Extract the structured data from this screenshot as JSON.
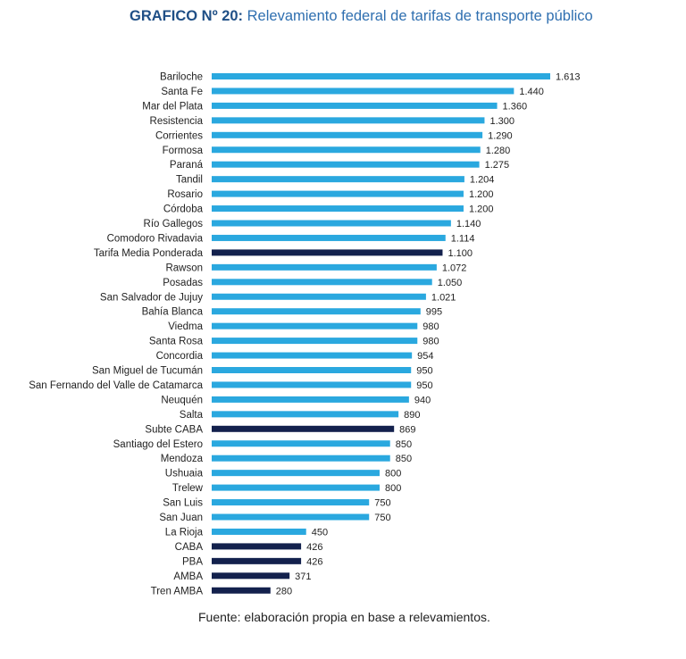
{
  "title": {
    "prefix": "GRAFICO Nº 20:",
    "text": "Relevamiento federal de tarifas de transporte público"
  },
  "source": "Fuente: elaboración propia en base a relevamientos.",
  "colors": {
    "bar": "#2aa8df",
    "highlight": "#13214d",
    "label": "#222222",
    "title": "#2f6fb0"
  },
  "chart_data": {
    "type": "bar",
    "orientation": "horizontal",
    "title": "Relevamiento federal de tarifas de transporte público",
    "xlabel": "",
    "ylabel": "",
    "grid": false,
    "xlim": [
      0,
      1613
    ],
    "categories": [
      "Bariloche",
      "Santa Fe",
      "Mar del Plata",
      "Resistencia",
      "Corrientes",
      "Formosa",
      "Paraná",
      "Tandil",
      "Rosario",
      "Córdoba",
      "Río Gallegos",
      "Comodoro Rivadavia",
      "Tarifa Media Ponderada",
      "Rawson",
      "Posadas",
      "San Salvador de Jujuy",
      "Bahía Blanca",
      "Viedma",
      "Santa Rosa",
      "Concordia",
      "San Miguel de Tucumán",
      "San Fernando del Valle de Catamarca",
      "Neuquén",
      "Salta",
      "Subte CABA",
      "Santiago del Estero",
      "Mendoza",
      "Ushuaia",
      "Trelew",
      "San Luis",
      "San Juan",
      "La Rioja",
      "CABA",
      "PBA",
      "AMBA",
      "Tren AMBA"
    ],
    "values": [
      1613,
      1440,
      1360,
      1300,
      1290,
      1280,
      1275,
      1204,
      1200,
      1200,
      1140,
      1114,
      1100,
      1072,
      1050,
      1021,
      995,
      980,
      980,
      954,
      950,
      950,
      940,
      890,
      869,
      850,
      850,
      800,
      800,
      750,
      750,
      450,
      426,
      426,
      371,
      280
    ],
    "value_labels": [
      "1.613",
      "1.440",
      "1.360",
      "1.300",
      "1.290",
      "1.280",
      "1.275",
      "1.204",
      "1.200",
      "1.200",
      "1.140",
      "1.114",
      "1.100",
      "1.072",
      "1.050",
      "1.021",
      "995",
      "980",
      "980",
      "954",
      "950",
      "950",
      "940",
      "890",
      "869",
      "850",
      "850",
      "800",
      "800",
      "750",
      "750",
      "450",
      "426",
      "426",
      "371",
      "280"
    ],
    "highlighted": [
      "Tarifa Media Ponderada",
      "Subte CABA",
      "CABA",
      "PBA",
      "AMBA",
      "Tren AMBA"
    ]
  }
}
